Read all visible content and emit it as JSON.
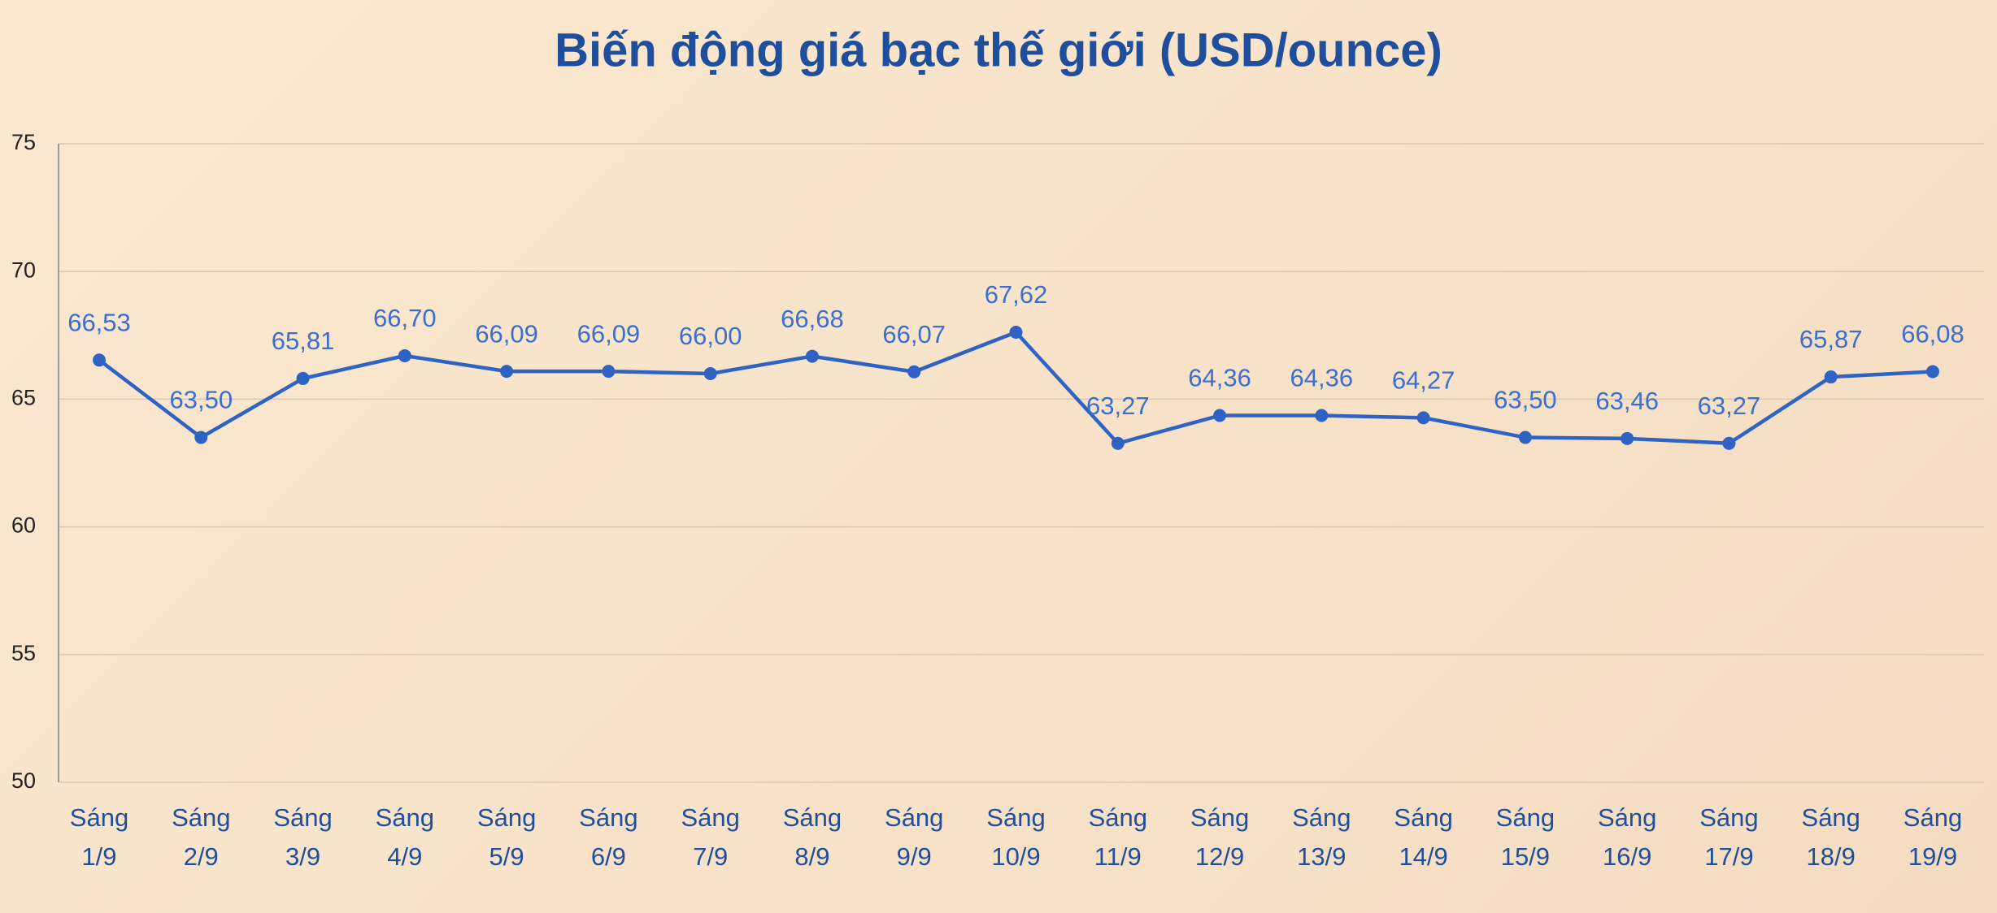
{
  "chart_data": {
    "type": "line",
    "title": "Biến động giá bạc thế giới (USD/ounce)",
    "categories": [
      "Sáng 1/9",
      "Sáng 2/9",
      "Sáng 3/9",
      "Sáng 4/9",
      "Sáng 5/9",
      "Sáng 6/9",
      "Sáng 7/9",
      "Sáng 8/9",
      "Sáng 9/9",
      "Sáng 10/9",
      "Sáng 11/9",
      "Sáng 12/9",
      "Sáng 13/9",
      "Sáng 14/9",
      "Sáng 15/9",
      "Sáng 16/9",
      "Sáng 17/9",
      "Sáng 18/9",
      "Sáng 19/9"
    ],
    "values": [
      66.53,
      63.5,
      65.81,
      66.7,
      66.09,
      66.09,
      66.0,
      66.68,
      66.07,
      67.62,
      63.27,
      64.36,
      64.36,
      64.27,
      63.5,
      63.46,
      63.27,
      65.87,
      66.08
    ],
    "value_labels": [
      "66,53",
      "63,50",
      "65,81",
      "66,70",
      "66,09",
      "66,09",
      "66,00",
      "66,68",
      "66,07",
      "67,62",
      "63,27",
      "64,36",
      "64,36",
      "64,27",
      "63,50",
      "63,46",
      "63,27",
      "65,87",
      "66,08"
    ],
    "color": "#2e63c4",
    "ylim": [
      50,
      75
    ],
    "yticks": [
      50,
      55,
      60,
      65,
      70,
      75
    ],
    "grid": true
  }
}
